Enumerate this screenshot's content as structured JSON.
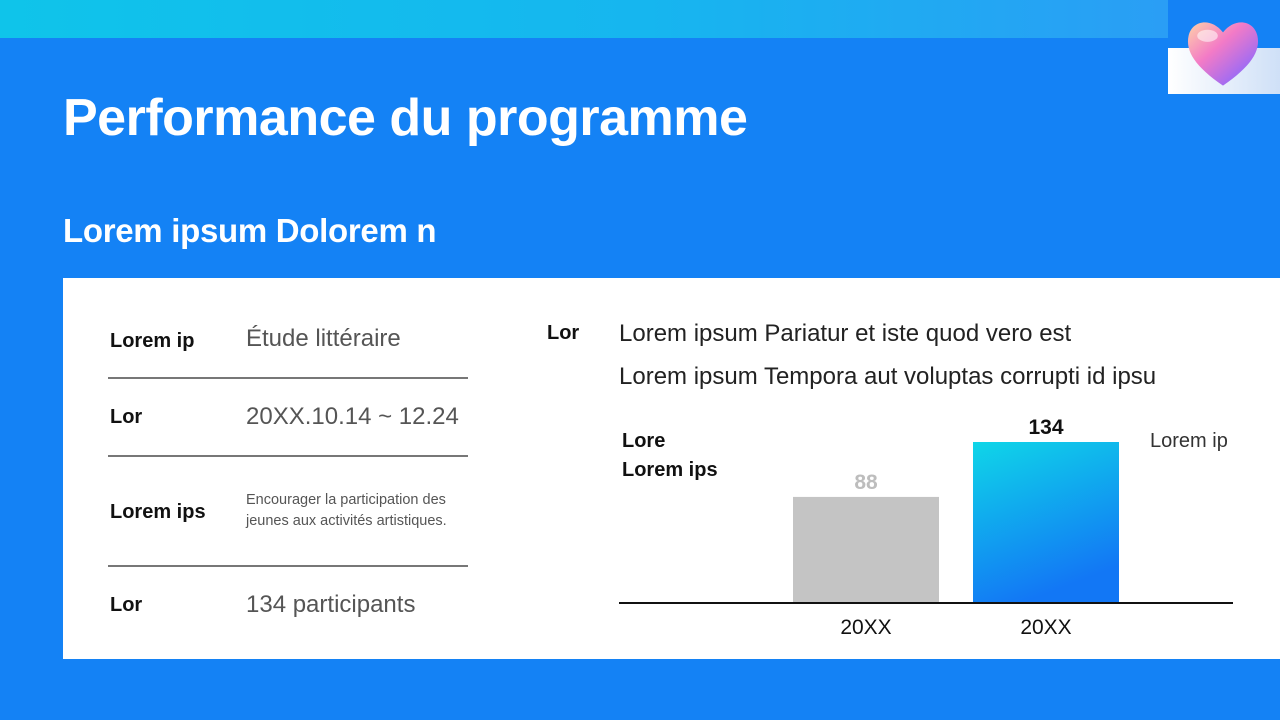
{
  "slide": {
    "title": "Performance du programme",
    "subtitle": "Lorem ipsum Dolorem n"
  },
  "info_table": [
    {
      "label": "Lorem ip",
      "value": "Étude littéraire"
    },
    {
      "label": "Lor",
      "value": "20XX.10.14 ~ 12.24"
    },
    {
      "label": "Lorem ips",
      "value": "Encourager la participation des jeunes aux activités artistiques."
    },
    {
      "label": "Lor",
      "value": "134 participants"
    }
  ],
  "description": {
    "label": "Lor",
    "lines": [
      "Lorem ipsum Pariatur et iste quod vero est",
      "Lorem ipsum Tempora aut voluptas corrupti id ipsu"
    ]
  },
  "chart_data": {
    "type": "bar",
    "categories": [
      "20XX",
      "20XX"
    ],
    "values": [
      88,
      134
    ],
    "data_labels": [
      "88",
      "134"
    ],
    "annotations": [
      "Lore",
      "Lorem ips",
      "Lorem ip"
    ],
    "bar_colors": [
      "#c4c4c4",
      "gradient:#0fd6e8-#1277f5"
    ],
    "label_colors": [
      "#bdbdbd",
      "#111111"
    ],
    "ylim": [
      0,
      134
    ],
    "grid": false
  },
  "colors": {
    "background": "#1482f5",
    "panel": "#ffffff",
    "accent": "#10c8e8"
  },
  "icons": {
    "heart": "heart-3d-icon"
  }
}
